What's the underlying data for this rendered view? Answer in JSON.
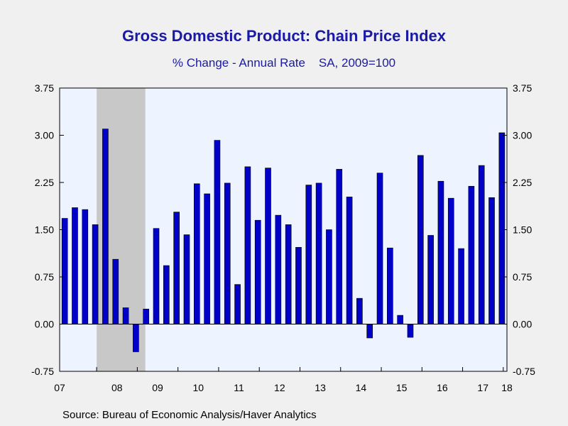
{
  "header": {
    "title": "Gross Domestic Product: Chain Price Index",
    "subtitle": "% Change - Annual Rate    SA, 2009=100"
  },
  "footer": {
    "source": "Source:  Bureau of Economic Analysis/Haver Analytics"
  },
  "colors": {
    "bar": "#0000c8",
    "plot_bg": "#eef4ff",
    "recession": "#c8c8c8"
  },
  "chart_data": {
    "type": "bar",
    "title": "Gross Domestic Product: Chain Price Index",
    "subtitle": "% Change - Annual Rate    SA, 2009=100",
    "xlabel": "",
    "ylabel": "",
    "ylim": [
      -0.75,
      3.75
    ],
    "yticks": [
      "3.75",
      "3.00",
      "2.25",
      "1.50",
      "0.75",
      "0.00",
      "-0.75"
    ],
    "year_labels": [
      "07",
      "08",
      "09",
      "10",
      "11",
      "12",
      "13",
      "14",
      "15",
      "16",
      "17",
      "18"
    ],
    "x_start": "2007 Q1",
    "frequency": "quarterly",
    "recession_shading": {
      "from": "2008 Q1",
      "to": "2009 Q2"
    },
    "values": [
      1.68,
      1.85,
      1.82,
      1.58,
      3.1,
      1.03,
      0.26,
      -0.44,
      0.24,
      1.52,
      0.93,
      1.78,
      1.42,
      2.23,
      2.07,
      2.92,
      2.24,
      0.63,
      2.5,
      1.65,
      2.48,
      1.73,
      1.58,
      1.22,
      2.21,
      2.24,
      1.5,
      2.46,
      2.02,
      0.41,
      -0.22,
      2.4,
      1.21,
      0.14,
      -0.21,
      2.68,
      1.41,
      2.27,
      2.0,
      1.2,
      2.19,
      2.52,
      2.01,
      3.04
    ],
    "grid": false,
    "legend": "none",
    "dual_axis": true
  }
}
